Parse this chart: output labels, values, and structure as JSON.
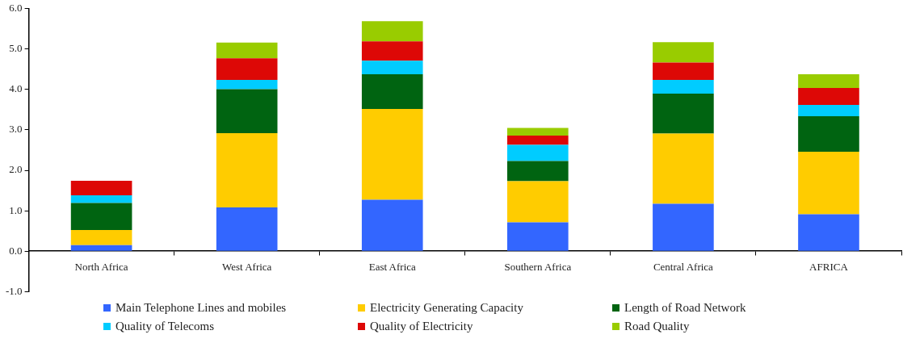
{
  "chart_data": {
    "type": "bar",
    "stacked": true,
    "categories": [
      "North Africa",
      "West Africa",
      "East Africa",
      "Southern Africa",
      "Central Africa",
      "AFRICA"
    ],
    "series": [
      {
        "name": "Main Telephone Lines and mobiles",
        "color": "#3366ff",
        "values": [
          0.15,
          1.08,
          1.27,
          0.71,
          1.17,
          0.91
        ]
      },
      {
        "name": "Electricity Generating Capacity",
        "color": "#ffcc00",
        "values": [
          0.37,
          1.84,
          2.25,
          1.02,
          1.74,
          1.55
        ]
      },
      {
        "name": "Length of Road Network",
        "color": "#006411",
        "values": [
          0.67,
          1.09,
          0.86,
          0.5,
          0.99,
          0.88
        ]
      },
      {
        "name": "Quality of Telecoms",
        "color": "#00ccff",
        "values": [
          0.19,
          0.23,
          0.33,
          0.4,
          0.34,
          0.28
        ]
      },
      {
        "name": "Quality of Electricity",
        "color": "#dd0806",
        "values": [
          0.36,
          0.53,
          0.48,
          0.23,
          0.43,
          0.42
        ]
      },
      {
        "name": "Road Quality",
        "color": "#99cc00",
        "values": [
          0,
          0.39,
          0.5,
          0.19,
          0.5,
          0.34
        ]
      }
    ],
    "ylim": [
      -1,
      6
    ],
    "yticks": [
      {
        "value": -1,
        "label": "-1.0"
      },
      {
        "value": 0,
        "label": "0.0"
      },
      {
        "value": 1,
        "label": "1.0"
      },
      {
        "value": 2,
        "label": "2.0"
      },
      {
        "value": 3,
        "label": "3.0"
      },
      {
        "value": 4,
        "label": "4.0"
      },
      {
        "value": 5,
        "label": "5.0"
      },
      {
        "value": 6,
        "label": "6.0"
      }
    ],
    "grid": false,
    "legend": "bottom"
  }
}
